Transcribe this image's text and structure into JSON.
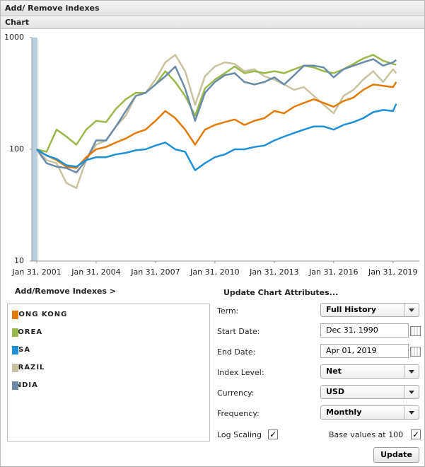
{
  "header": {
    "title": "Add/ Remove indexes",
    "section": "Chart"
  },
  "chart_data": {
    "type": "line",
    "log_scale": true,
    "x": [
      "2001-01-31",
      "2001-07-31",
      "2002-01-31",
      "2002-07-31",
      "2003-01-31",
      "2003-07-31",
      "2004-01-31",
      "2004-07-31",
      "2005-01-31",
      "2005-07-31",
      "2006-01-31",
      "2006-07-31",
      "2007-01-31",
      "2007-07-31",
      "2008-01-31",
      "2008-07-31",
      "2009-01-31",
      "2009-07-31",
      "2010-01-31",
      "2010-07-31",
      "2011-01-31",
      "2011-07-31",
      "2012-01-31",
      "2012-07-31",
      "2013-01-31",
      "2013-07-31",
      "2014-01-31",
      "2014-07-31",
      "2015-01-31",
      "2015-07-31",
      "2016-01-31",
      "2016-07-31",
      "2017-01-31",
      "2017-07-31",
      "2018-01-31",
      "2018-07-31",
      "2019-01-31",
      "2019-03-31"
    ],
    "series": [
      {
        "name": "HONG KONG",
        "color": "#e07b00",
        "values": [
          100,
          88,
          80,
          70,
          68,
          85,
          100,
          105,
          115,
          125,
          140,
          150,
          180,
          220,
          190,
          150,
          110,
          150,
          165,
          175,
          185,
          165,
          180,
          190,
          220,
          210,
          240,
          260,
          280,
          260,
          240,
          270,
          290,
          340,
          380,
          370,
          360,
          400
        ]
      },
      {
        "name": "KOREA",
        "color": "#9bb84a",
        "values": [
          100,
          95,
          150,
          130,
          110,
          150,
          180,
          175,
          230,
          280,
          320,
          320,
          380,
          500,
          400,
          300,
          200,
          350,
          420,
          480,
          550,
          480,
          500,
          480,
          500,
          480,
          520,
          560,
          540,
          500,
          480,
          520,
          580,
          650,
          700,
          620,
          580,
          570
        ]
      },
      {
        "name": "USA",
        "color": "#1e90d8",
        "values": [
          100,
          88,
          82,
          72,
          70,
          80,
          85,
          85,
          90,
          93,
          98,
          100,
          108,
          115,
          100,
          95,
          65,
          75,
          85,
          90,
          100,
          100,
          105,
          108,
          120,
          130,
          140,
          150,
          160,
          160,
          150,
          165,
          175,
          190,
          215,
          225,
          220,
          255
        ]
      },
      {
        "name": "BRAZIL",
        "color": "#c9c2a0",
        "values": [
          100,
          80,
          75,
          50,
          45,
          80,
          110,
          120,
          160,
          200,
          300,
          320,
          420,
          600,
          700,
          500,
          250,
          450,
          550,
          600,
          580,
          500,
          520,
          450,
          420,
          380,
          340,
          360,
          300,
          250,
          210,
          300,
          340,
          420,
          500,
          400,
          520,
          480
        ]
      },
      {
        "name": "INDIA",
        "color": "#6a8aa8",
        "values": [
          100,
          75,
          70,
          68,
          62,
          80,
          120,
          120,
          160,
          220,
          300,
          320,
          380,
          450,
          550,
          350,
          180,
          320,
          400,
          460,
          480,
          400,
          380,
          400,
          440,
          380,
          460,
          560,
          560,
          540,
          440,
          520,
          560,
          600,
          640,
          560,
          600,
          630
        ]
      }
    ],
    "xlim": [
      "2000-10-31",
      "2020-05-31"
    ],
    "xticks": [
      {
        "value": "2001-01-31",
        "label": "Jan 31, 2001"
      },
      {
        "value": "2004-01-31",
        "label": "Jan 31, 2004"
      },
      {
        "value": "2007-01-31",
        "label": "Jan 31, 2007"
      },
      {
        "value": "2010-01-31",
        "label": "Jan 31, 2010"
      },
      {
        "value": "2013-01-31",
        "label": "Jan 31, 2013"
      },
      {
        "value": "2016-01-31",
        "label": "Jan 31, 2016"
      },
      {
        "value": "2019-01-31",
        "label": "Jan 31, 2019"
      }
    ],
    "ylim": [
      10,
      1000
    ],
    "yticks": [
      10,
      100,
      1000
    ]
  },
  "panel": {
    "indexes_link": "Add/Remove Indexes >",
    "attributes_title": "Update Chart Attributes...",
    "fields": [
      {
        "label": "Term:",
        "value": "Full History",
        "kind": "select"
      },
      {
        "label": "Start Date:",
        "value": "Dec 31, 1990",
        "kind": "date"
      },
      {
        "label": "End Date:",
        "value": "Apr 01, 2019",
        "kind": "date"
      },
      {
        "label": "Index Level:",
        "value": "Net",
        "kind": "select"
      },
      {
        "label": "Currency:",
        "value": "USD",
        "kind": "select"
      },
      {
        "label": "Frequency:",
        "value": "Monthly",
        "kind": "select"
      }
    ],
    "log_scaling": {
      "label": "Log Scaling",
      "checked": true
    },
    "base_values": {
      "label": "Base values at 100",
      "checked": true
    },
    "button": "Update"
  }
}
